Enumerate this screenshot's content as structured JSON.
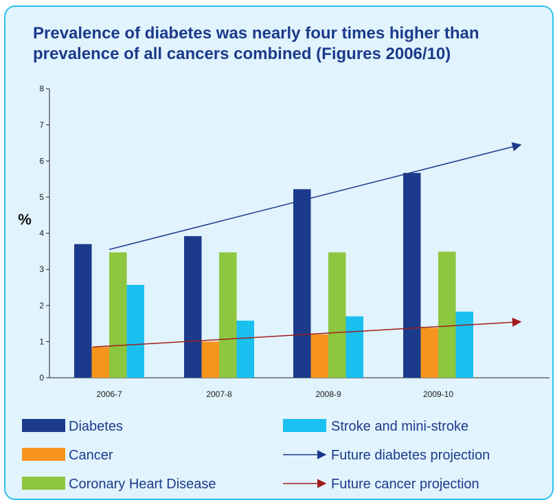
{
  "title": "Prevalence of diabetes was nearly four times higher than prevalence of all cancers combined (Figures 2006/10)",
  "colors": {
    "background": "#e1f3fc",
    "border": "#2cc0ee",
    "title": "#1b3a8b"
  },
  "chart_data": {
    "type": "bar",
    "title": "Prevalence of diabetes was nearly four times higher than prevalence of all cancers combined (Figures 2006/10)",
    "ylabel": "%",
    "xlabel": "",
    "ylim": [
      0,
      8
    ],
    "yticks": [
      0,
      1,
      2,
      3,
      4,
      5,
      6,
      7,
      8
    ],
    "grid": false,
    "legend_position": "bottom",
    "categories": [
      "2006-7",
      "2007-8",
      "2008-9",
      "2009-10"
    ],
    "series": [
      {
        "name": "Diabetes",
        "color": "#1b3a8b",
        "values": [
          3.7,
          3.92,
          5.22,
          5.67
        ]
      },
      {
        "name": "Cancer",
        "color": "#f7941d",
        "values": [
          0.85,
          1.0,
          1.2,
          1.38
        ]
      },
      {
        "name": "Coronary Heart Disease",
        "color": "#8dc63f",
        "values": [
          3.47,
          3.47,
          3.47,
          3.49
        ]
      },
      {
        "name": "Stroke and mini-stroke",
        "color": "#19c0f0",
        "values": [
          2.57,
          1.58,
          1.7,
          1.83
        ]
      }
    ],
    "projections": [
      {
        "name": "Future diabetes projection",
        "color": "#1b3a8b",
        "start": 3.55,
        "end": 6.45
      },
      {
        "name": "Future cancer projection",
        "color": "#a01c1c",
        "start": 0.85,
        "end": 1.55
      }
    ]
  }
}
